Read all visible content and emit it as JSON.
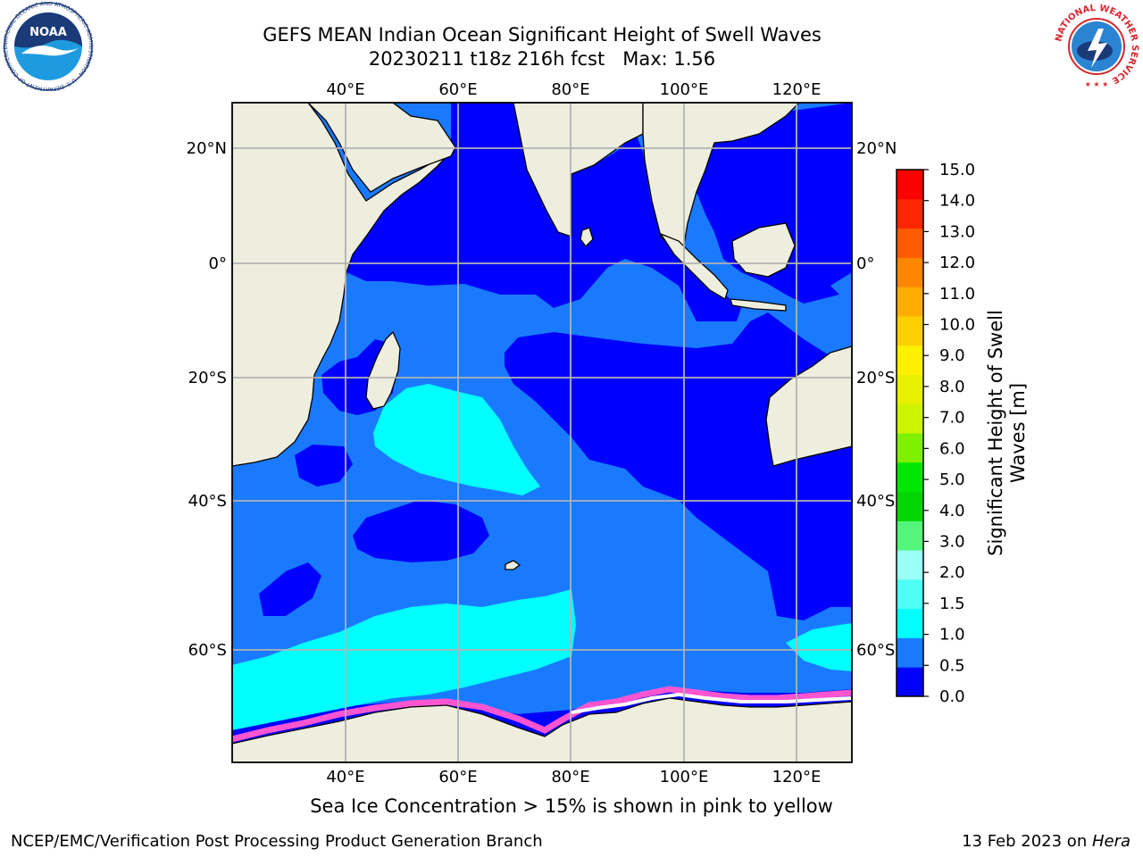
{
  "title": {
    "line1": "GEFS MEAN Indian Ocean Significant Height of Swell Waves",
    "line2_date": "20230211 t18z 216h fcst",
    "line2_max": "Max: 1.56"
  },
  "map": {
    "region": "Indian Ocean",
    "lon_range_degE": [
      20,
      130
    ],
    "lat_range_deg": [
      -77,
      27
    ],
    "grid_lons": [
      40,
      60,
      80,
      100,
      120
    ],
    "grid_lats": [
      20,
      0,
      -20,
      -40,
      -60
    ],
    "lon_labels": [
      "40°E",
      "60°E",
      "80°E",
      "100°E",
      "120°E"
    ],
    "lat_labels": [
      "20°N",
      "0°",
      "20°S",
      "40°S",
      "60°S"
    ],
    "grid": true,
    "colors": {
      "land": "#eeeedf",
      "coast": "#000000",
      "grid": "#b2b2b2",
      "ice": "#ff55d0",
      "swell_0_05": "#0000ff",
      "swell_05_10": "#1a7aff",
      "swell_10_15": "#00ffff"
    }
  },
  "colorbar": {
    "title": "Significant Height of Swell Waves [m]",
    "levels": [
      "0.0",
      "0.5",
      "1.0",
      "1.5",
      "2.0",
      "3.0",
      "4.0",
      "5.0",
      "6.0",
      "7.0",
      "8.0",
      "9.0",
      "10.0",
      "11.0",
      "12.0",
      "13.0",
      "14.0",
      "15.0"
    ],
    "colors": [
      "#0000ff",
      "#1a7aff",
      "#00ffff",
      "#4dfff4",
      "#9afff7",
      "#55f57c",
      "#00d700",
      "#00e800",
      "#7ef000",
      "#cdf500",
      "#e6f000",
      "#fff000",
      "#ffd000",
      "#ffad00",
      "#ff8600",
      "#ff5a00",
      "#ff2600",
      "#ff0000"
    ],
    "placement": "right"
  },
  "ice_caption": "Sea Ice Concentration > 15% is shown in pink to yellow",
  "footer": {
    "left": "NCEP/EMC/Verification Post Processing Product Generation Branch",
    "right_date": "13 Feb 2023 on ",
    "right_machine": "Hera"
  },
  "logos": {
    "noaa_text": "NOAA",
    "noaa_ring_text": "NATIONAL OCEANIC AND ATMOSPHERIC ADMINISTRATION · U.S. DEPARTMENT OF COMMERCE",
    "nws_ring_text": "NATIONAL WEATHER SERVICE"
  }
}
